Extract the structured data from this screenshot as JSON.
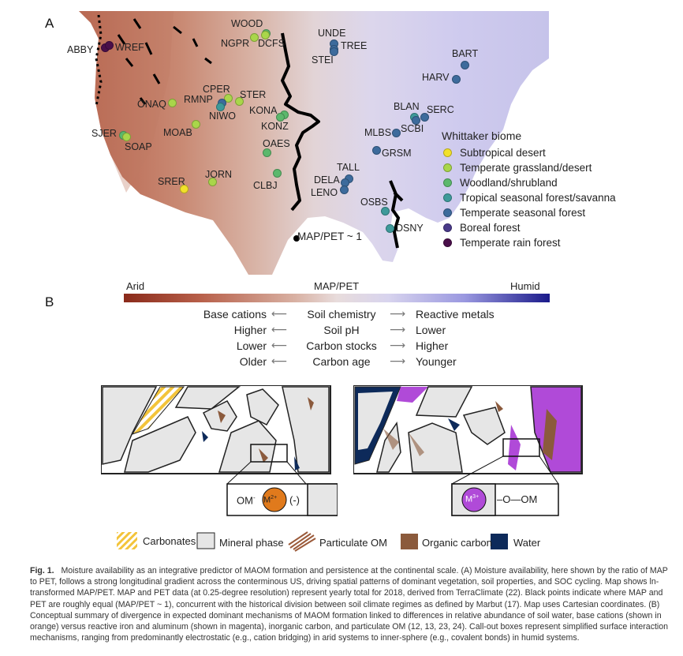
{
  "panel_a": {
    "letter": "A",
    "sites": [
      {
        "id": "WOOD",
        "label": "WOOD",
        "biome": 2
      },
      {
        "id": "NGPR",
        "label": "NGPR",
        "biome": 1
      },
      {
        "id": "DCFS",
        "label": "DCFS",
        "biome": 1
      },
      {
        "id": "UNDE",
        "label": "UNDE",
        "biome": 4
      },
      {
        "id": "TREE",
        "label": "TREE",
        "biome": 4
      },
      {
        "id": "STEI",
        "label": "STEI",
        "biome": 4
      },
      {
        "id": "ABBY",
        "label": "ABBY",
        "biome": 6
      },
      {
        "id": "WREF",
        "label": "WREF",
        "biome": 6
      },
      {
        "id": "BART",
        "label": "BART",
        "biome": 4
      },
      {
        "id": "HARV",
        "label": "HARV",
        "biome": 4
      },
      {
        "id": "CPER",
        "label": "CPER",
        "biome": 1
      },
      {
        "id": "STER",
        "label": "STER",
        "biome": 1
      },
      {
        "id": "RMNP",
        "label": "RMNP",
        "biome": 4
      },
      {
        "id": "ONAQ",
        "label": "ONAQ",
        "biome": 1
      },
      {
        "id": "NIWO",
        "label": "NIWO",
        "biome": 3
      },
      {
        "id": "KONA",
        "label": "KONA",
        "biome": 2
      },
      {
        "id": "KONZ",
        "label": "KONZ",
        "biome": 2
      },
      {
        "id": "BLAN",
        "label": "BLAN",
        "biome": 3
      },
      {
        "id": "SERC",
        "label": "SERC",
        "biome": 4
      },
      {
        "id": "SCBI",
        "label": "SCBI",
        "biome": 4
      },
      {
        "id": "MLBS",
        "label": "MLBS",
        "biome": 4
      },
      {
        "id": "MOAB",
        "label": "MOAB",
        "biome": 1
      },
      {
        "id": "SJER",
        "label": "SJER",
        "biome": 2
      },
      {
        "id": "SOAP",
        "label": "SOAP",
        "biome": 1
      },
      {
        "id": "OAES",
        "label": "OAES",
        "biome": 2
      },
      {
        "id": "GRSM",
        "label": "GRSM",
        "biome": 4
      },
      {
        "id": "TALL",
        "label": "TALL",
        "biome": 4
      },
      {
        "id": "DELA",
        "label": "DELA",
        "biome": 4
      },
      {
        "id": "LENO",
        "label": "LENO",
        "biome": 4
      },
      {
        "id": "JORN",
        "label": "JORN",
        "biome": 1
      },
      {
        "id": "SRER",
        "label": "SRER",
        "biome": 0
      },
      {
        "id": "CLBJ",
        "label": "CLBJ",
        "biome": 2
      },
      {
        "id": "OSBS",
        "label": "OSBS",
        "biome": 3
      },
      {
        "id": "DSNY",
        "label": "DSNY",
        "biome": 3
      }
    ],
    "legend": {
      "title": "Whittaker biome",
      "items": [
        {
          "label": "Subtropical desert",
          "color": "#f2e12a"
        },
        {
          "label": "Temperate grassland/desert",
          "color": "#a9d64a"
        },
        {
          "label": "Woodland/shrubland",
          "color": "#5cb86c"
        },
        {
          "label": "Tropical seasonal forest/savanna",
          "color": "#3e9a9a"
        },
        {
          "label": "Temperate seasonal forest",
          "color": "#3d6b9c"
        },
        {
          "label": "Boreal forest",
          "color": "#4a3a8a"
        },
        {
          "label": "Temperate rain forest",
          "color": "#4a0f4a"
        }
      ]
    },
    "map_pet_note": "MAP/PET ~ 1",
    "colorbar": {
      "left": "Arid",
      "center": "MAP/PET",
      "right": "Humid"
    }
  },
  "panel_b": {
    "letter": "B",
    "rows": [
      {
        "left": "Base cations",
        "center": "Soil chemistry",
        "right": "Reactive metals"
      },
      {
        "left": "Higher",
        "center": "Soil pH",
        "right": "Lower"
      },
      {
        "left": "Lower",
        "center": "Carbon stocks",
        "right": "Higher"
      },
      {
        "left": "Older",
        "center": "Carbon age",
        "right": "Younger"
      }
    ],
    "left_callout": {
      "om": "OM",
      "om_sup": "-",
      "metal": "M",
      "metal_sup": "2+",
      "charge": "(-)"
    },
    "right_callout": {
      "metal": "M",
      "metal_sup": "3+",
      "bond": "–O—OM"
    },
    "legend": [
      {
        "label": "Carbonates"
      },
      {
        "label": "Mineral phase"
      },
      {
        "label": "Particulate OM"
      },
      {
        "label": "Organic carbon"
      },
      {
        "label": "Water"
      }
    ],
    "colors": {
      "carbonate": "#f3c43a",
      "mineral": "#e6e6e6",
      "particulate": "#9b5a3a",
      "organic": "#8b5a3c",
      "water": "#0d2a5a",
      "m2": "#e07a1c",
      "m3": "#b04ad8"
    }
  },
  "caption": {
    "fig_label": "Fig. 1.",
    "text": "Moisture availability as an integrative predictor of MAOM formation and persistence at the continental scale. (A) Moisture availability, here shown by the ratio of MAP to PET, follows a strong longitudinal gradient across the conterminous US, driving spatial patterns of dominant vegetation, soil properties, and SOC cycling. Map shows ln-transformed MAP/PET. MAP and PET data (at 0.25-degree resolution) represent yearly total for 2018, derived from TerraClimate (22). Black points indicate where MAP and PET are roughly equal (MAP/PET ~ 1), concurrent with the historical division between soil climate regimes as defined by Marbut (17). Map uses Cartesian coordinates. (B) Conceptual summary of divergence in expected dominant mechanisms of MAOM formation linked to differences in relative abundance of soil water, base cations (shown in orange) versus reactive iron and aluminum (shown in magenta), inorganic carbon, and particulate OM (12, 13, 23, 24). Call-out boxes represent simplified surface interaction mechanisms, ranging from predominantly electrostatic (e.g., cation bridging) in arid systems to inner-sphere (e.g., covalent bonds) in humid systems."
  }
}
